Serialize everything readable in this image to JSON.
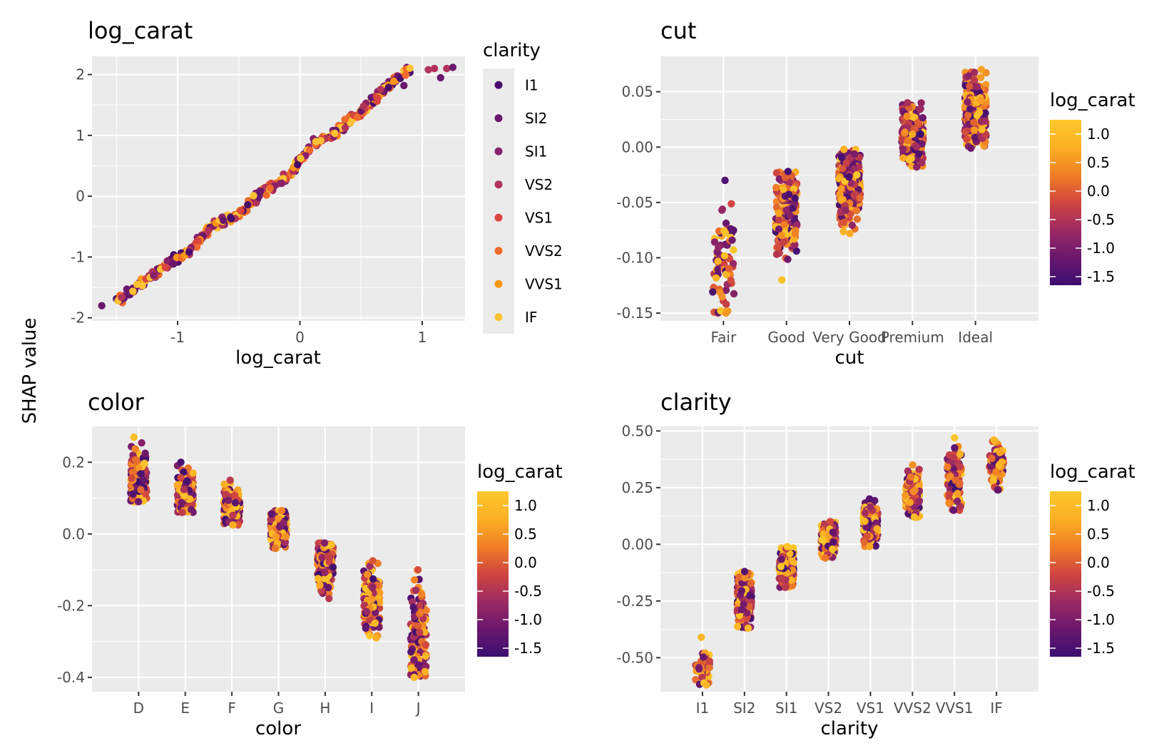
{
  "y_axis_title": "SHAP value",
  "colors": {
    "panel_background": "#ebebeb",
    "grid": "#ffffff",
    "tick_text": "#4d4d4d",
    "colorbar_gradient": [
      "#3b0f70",
      "#6a176e",
      "#9c2a63",
      "#d0453f",
      "#f07f25",
      "#fbb024",
      "#fcc82b"
    ]
  },
  "clarity_legend": {
    "title": "clarity",
    "items": [
      {
        "label": "I1",
        "color": "#4a0c6b"
      },
      {
        "label": "SI2",
        "color": "#6a176e"
      },
      {
        "label": "SI1",
        "color": "#88206b"
      },
      {
        "label": "VS2",
        "color": "#b1325a"
      },
      {
        "label": "VS1",
        "color": "#d8463f"
      },
      {
        "label": "VVS2",
        "color": "#f06a2a"
      },
      {
        "label": "VVS1",
        "color": "#fb9512"
      },
      {
        "label": "IF",
        "color": "#fcc233"
      }
    ]
  },
  "log_carat_colorbar": {
    "title": "log_carat",
    "ticks": [
      "1.0",
      "0.5",
      "0.0",
      "-0.5",
      "-1.0",
      "-1.5"
    ],
    "tick_values": [
      1.0,
      0.5,
      0.0,
      -0.5,
      -1.0,
      -1.5
    ],
    "range": [
      -1.65,
      1.25
    ]
  },
  "chart_data": [
    {
      "type": "scatter",
      "title": "log_carat",
      "xlabel": "log_carat",
      "ylabel": "SHAP value",
      "xlim": [
        -1.7,
        1.35
      ],
      "ylim": [
        -2.05,
        2.3
      ],
      "x_ticks": [
        -1,
        0,
        1
      ],
      "x_tick_labels": [
        "-1",
        "0",
        "1"
      ],
      "y_ticks": [
        -2,
        -1,
        0,
        1,
        2
      ],
      "y_tick_labels": [
        "-2",
        "-1",
        "0",
        "1",
        "2"
      ],
      "color_by": "clarity",
      "trend": [
        [
          -1.5,
          -1.72
        ],
        [
          -1.3,
          -1.45
        ],
        [
          -1.1,
          -1.15
        ],
        [
          -0.9,
          -0.9
        ],
        [
          -0.7,
          -0.45
        ],
        [
          -0.5,
          -0.3
        ],
        [
          -0.3,
          0.1
        ],
        [
          -0.1,
          0.3
        ],
        [
          0.1,
          0.85
        ],
        [
          0.3,
          1.05
        ],
        [
          0.5,
          1.4
        ],
        [
          0.7,
          1.8
        ],
        [
          0.9,
          2.1
        ]
      ],
      "outliers": [
        {
          "x": -1.62,
          "y": -1.8
        },
        {
          "x": 1.1,
          "y": 2.1
        },
        {
          "x": 1.15,
          "y": 1.95
        },
        {
          "x": 1.2,
          "y": 2.1
        },
        {
          "x": 1.25,
          "y": 2.12
        },
        {
          "x": 1.05,
          "y": 2.08
        },
        {
          "x": 0.85,
          "y": 1.82
        },
        {
          "x": 0.52,
          "y": 1.48
        }
      ],
      "n_points": 420,
      "grid": true,
      "legend": "right (clarity)"
    },
    {
      "type": "scatter",
      "title": "cut",
      "xlabel": "cut",
      "categories": [
        "Fair",
        "Good",
        "Very Good",
        "Premium",
        "Ideal"
      ],
      "ylim": [
        -0.157,
        0.082
      ],
      "y_ticks": [
        -0.15,
        -0.1,
        -0.05,
        0,
        0.05
      ],
      "y_tick_labels": [
        "-0.15",
        "-0.10",
        "-0.05",
        "0.00",
        "0.05"
      ],
      "color_by": "log_carat",
      "clusters": [
        {
          "category": "Fair",
          "ymin": -0.15,
          "ymax": -0.03,
          "center": -0.105,
          "n": 70
        },
        {
          "category": "Good",
          "ymin": -0.12,
          "ymax": -0.022,
          "center": -0.06,
          "n": 170
        },
        {
          "category": "Very Good",
          "ymin": -0.078,
          "ymax": -0.002,
          "center": -0.035,
          "n": 300
        },
        {
          "category": "Premium",
          "ymin": -0.018,
          "ymax": 0.04,
          "center": 0.013,
          "n": 320
        },
        {
          "category": "Ideal",
          "ymin": -0.001,
          "ymax": 0.07,
          "center": 0.032,
          "n": 320
        }
      ],
      "legend": "right (log_carat colorbar)"
    },
    {
      "type": "scatter",
      "title": "color",
      "xlabel": "color",
      "categories": [
        "D",
        "E",
        "F",
        "G",
        "H",
        "I",
        "J"
      ],
      "ylim": [
        -0.44,
        0.3
      ],
      "y_ticks": [
        -0.4,
        -0.2,
        0,
        0.2
      ],
      "y_tick_labels": [
        "-0.4",
        "-0.2",
        "0.0",
        "0.2"
      ],
      "color_by": "log_carat",
      "clusters": [
        {
          "category": "D",
          "ymin": 0.09,
          "ymax": 0.27,
          "center": 0.15,
          "n": 200
        },
        {
          "category": "E",
          "ymin": 0.06,
          "ymax": 0.2,
          "center": 0.11,
          "n": 220
        },
        {
          "category": "F",
          "ymin": 0.025,
          "ymax": 0.15,
          "center": 0.08,
          "n": 220
        },
        {
          "category": "G",
          "ymin": -0.04,
          "ymax": 0.065,
          "center": 0.01,
          "n": 240
        },
        {
          "category": "H",
          "ymin": -0.18,
          "ymax": -0.025,
          "center": -0.08,
          "n": 200
        },
        {
          "category": "I",
          "ymin": -0.29,
          "ymax": -0.075,
          "center": -0.19,
          "n": 170
        },
        {
          "category": "J",
          "ymin": -0.4,
          "ymax": -0.1,
          "center": -0.29,
          "n": 130
        }
      ],
      "legend": "right (log_carat colorbar)"
    },
    {
      "type": "scatter",
      "title": "clarity",
      "xlabel": "clarity",
      "categories": [
        "I1",
        "SI2",
        "SI1",
        "VS2",
        "VS1",
        "VVS2",
        "VVS1",
        "IF"
      ],
      "ylim": [
        -0.65,
        0.52
      ],
      "y_ticks": [
        -0.5,
        -0.25,
        0,
        0.25,
        0.5
      ],
      "y_tick_labels": [
        "-0.50",
        "-0.25",
        "0.00",
        "0.25",
        "0.50"
      ],
      "color_by": "log_carat",
      "clusters": [
        {
          "category": "I1",
          "ymin": -0.62,
          "ymax": -0.41,
          "center": -0.55,
          "n": 40
        },
        {
          "category": "SI2",
          "ymin": -0.37,
          "ymax": -0.12,
          "center": -0.24,
          "n": 240
        },
        {
          "category": "SI1",
          "ymin": -0.19,
          "ymax": -0.01,
          "center": -0.1,
          "n": 260
        },
        {
          "category": "VS2",
          "ymin": -0.06,
          "ymax": 0.1,
          "center": 0.03,
          "n": 240
        },
        {
          "category": "VS1",
          "ymin": -0.01,
          "ymax": 0.2,
          "center": 0.09,
          "n": 200
        },
        {
          "category": "VVS2",
          "ymin": 0.12,
          "ymax": 0.35,
          "center": 0.22,
          "n": 170
        },
        {
          "category": "VVS1",
          "ymin": 0.15,
          "ymax": 0.47,
          "center": 0.29,
          "n": 130
        },
        {
          "category": "IF",
          "ymin": 0.24,
          "ymax": 0.46,
          "center": 0.35,
          "n": 80
        }
      ],
      "legend": "right (log_carat colorbar)"
    }
  ]
}
